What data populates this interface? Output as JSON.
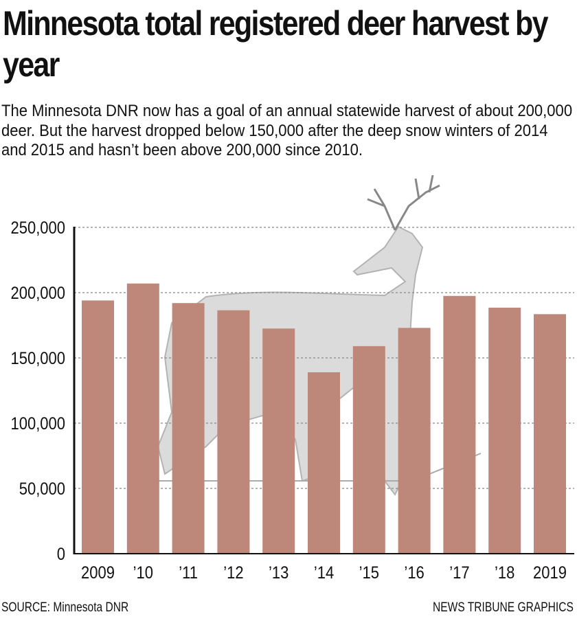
{
  "chart_data": {
    "type": "bar",
    "title": "Minnesota total registered deer harvest by year",
    "subtitle": "The Minnesota DNR now has a goal of an annual statewide harvest of about 200,000 deer. But the harvest dropped below 150,000 after the deep snow winters of 2014 and 2015 and hasn’t been above 200,000 since 2010.",
    "categories": [
      "2009",
      "’10",
      "’11",
      "’12",
      "’13",
      "’14",
      "’15",
      "’16",
      "’17",
      "’18",
      "2019"
    ],
    "values": [
      194000,
      207000,
      192000,
      186500,
      172500,
      139000,
      159000,
      173000,
      197500,
      188500,
      183500
    ],
    "ylim": [
      0,
      250000
    ],
    "yticks": [
      0,
      50000,
      100000,
      150000,
      200000,
      250000
    ],
    "ytick_labels": [
      "0",
      "50,000",
      "100,000",
      "150,000",
      "200,000",
      "250,000"
    ],
    "xlabel": "",
    "ylabel": "",
    "grid": "horizontal dashed",
    "bar_color": "#bd877a"
  },
  "footer": {
    "source": "SOURCE: Minnesota DNR",
    "credit": "NEWS TRIBUNE GRAPHICS"
  }
}
